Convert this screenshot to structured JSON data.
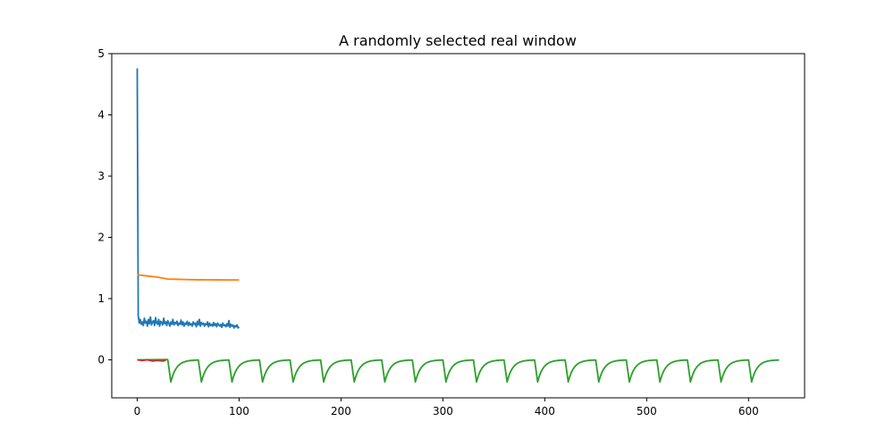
{
  "chart_data": {
    "type": "line",
    "title": "A randomly selected real window",
    "xlabel": "",
    "ylabel": "",
    "xlim": [
      -25,
      655
    ],
    "ylim": [
      -0.62,
      5.0
    ],
    "x_ticks": [
      0,
      100,
      200,
      300,
      400,
      500,
      600
    ],
    "y_ticks": [
      0,
      1,
      2,
      3,
      4,
      5
    ],
    "grid": false,
    "series": [
      {
        "color": "#1f77b4",
        "x": [
          0,
          1,
          2,
          3,
          4,
          5,
          6,
          7,
          8,
          9,
          10,
          11,
          12,
          13,
          14,
          15,
          16,
          17,
          18,
          19,
          20,
          21,
          22,
          23,
          24,
          25,
          26,
          27,
          28,
          29,
          30,
          31,
          32,
          33,
          34,
          35,
          36,
          37,
          38,
          39,
          40,
          41,
          42,
          43,
          44,
          45,
          46,
          47,
          48,
          49,
          50,
          51,
          52,
          53,
          54,
          55,
          56,
          57,
          58,
          59,
          60,
          61,
          62,
          63,
          64,
          65,
          66,
          67,
          68,
          69,
          70,
          71,
          72,
          73,
          74,
          75,
          76,
          77,
          78,
          79,
          80,
          81,
          82,
          83,
          84,
          85,
          86,
          87,
          88,
          89,
          90,
          91,
          92,
          93,
          94,
          95,
          96,
          97,
          98,
          99,
          100
        ],
        "values": [
          4.76,
          0.72,
          0.6,
          0.66,
          0.58,
          0.62,
          0.56,
          0.68,
          0.6,
          0.63,
          0.55,
          0.66,
          0.59,
          0.7,
          0.57,
          0.62,
          0.64,
          0.56,
          0.69,
          0.6,
          0.58,
          0.66,
          0.55,
          0.63,
          0.61,
          0.57,
          0.68,
          0.59,
          0.62,
          0.56,
          0.64,
          0.6,
          0.55,
          0.62,
          0.58,
          0.66,
          0.57,
          0.61,
          0.59,
          0.63,
          0.56,
          0.6,
          0.58,
          0.65,
          0.57,
          0.62,
          0.55,
          0.6,
          0.58,
          0.63,
          0.56,
          0.61,
          0.57,
          0.59,
          0.55,
          0.62,
          0.58,
          0.6,
          0.54,
          0.63,
          0.57,
          0.66,
          0.55,
          0.61,
          0.58,
          0.6,
          0.55,
          0.59,
          0.57,
          0.62,
          0.54,
          0.6,
          0.56,
          0.58,
          0.55,
          0.61,
          0.56,
          0.59,
          0.54,
          0.6,
          0.57,
          0.55,
          0.58,
          0.53,
          0.6,
          0.56,
          0.57,
          0.54,
          0.59,
          0.55,
          0.64,
          0.53,
          0.58,
          0.55,
          0.57,
          0.52,
          0.56,
          0.54,
          0.57,
          0.52,
          0.54
        ]
      },
      {
        "color": "#ff7f0e",
        "x": [
          0,
          10,
          20,
          30,
          40,
          50,
          60,
          70,
          80,
          90,
          100
        ],
        "values": [
          1.39,
          1.37,
          1.35,
          1.32,
          1.315,
          1.31,
          1.308,
          1.307,
          1.306,
          1.305,
          1.305
        ]
      },
      {
        "color": "#2ca02c",
        "cycle": {
          "x_start": 30,
          "period": 30,
          "cycles": 20,
          "x_end": 630,
          "min": -0.36,
          "max": 0.0
        }
      },
      {
        "color": "#d62728",
        "x": [
          0,
          5,
          10,
          15,
          20,
          25,
          28
        ],
        "values": [
          0.0,
          -0.01,
          0.0,
          -0.02,
          -0.01,
          -0.02,
          -0.01
        ]
      }
    ]
  }
}
